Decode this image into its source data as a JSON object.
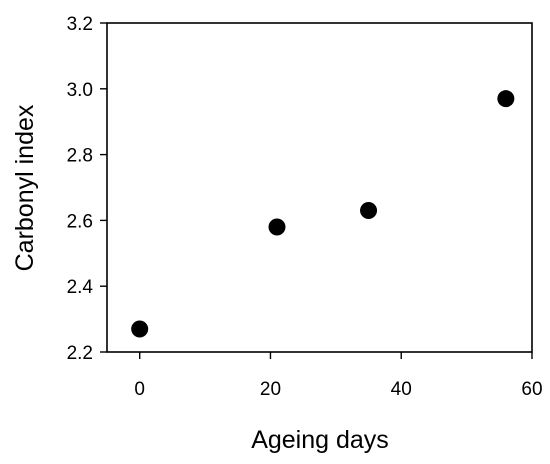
{
  "chart_data": {
    "type": "scatter",
    "title": "",
    "xlabel": "Ageing days",
    "ylabel": "Carbonyl index",
    "xlim": [
      -5,
      60
    ],
    "ylim": [
      2.2,
      3.2
    ],
    "x_ticks": [
      0,
      20,
      40,
      60
    ],
    "y_ticks": [
      2.2,
      2.4,
      2.6,
      2.8,
      3.0,
      3.2
    ],
    "x_tick_labels": [
      "0",
      "20",
      "40",
      "60"
    ],
    "y_tick_labels": [
      "2.2",
      "2.4",
      "2.6",
      "2.8",
      "3.0",
      "3.2"
    ],
    "grid": false,
    "series": [
      {
        "marker_color": "#000000",
        "points": [
          {
            "x": 0,
            "y": 2.27
          },
          {
            "x": 21,
            "y": 2.58
          },
          {
            "x": 35,
            "y": 2.63
          },
          {
            "x": 56,
            "y": 2.97
          }
        ]
      }
    ]
  }
}
